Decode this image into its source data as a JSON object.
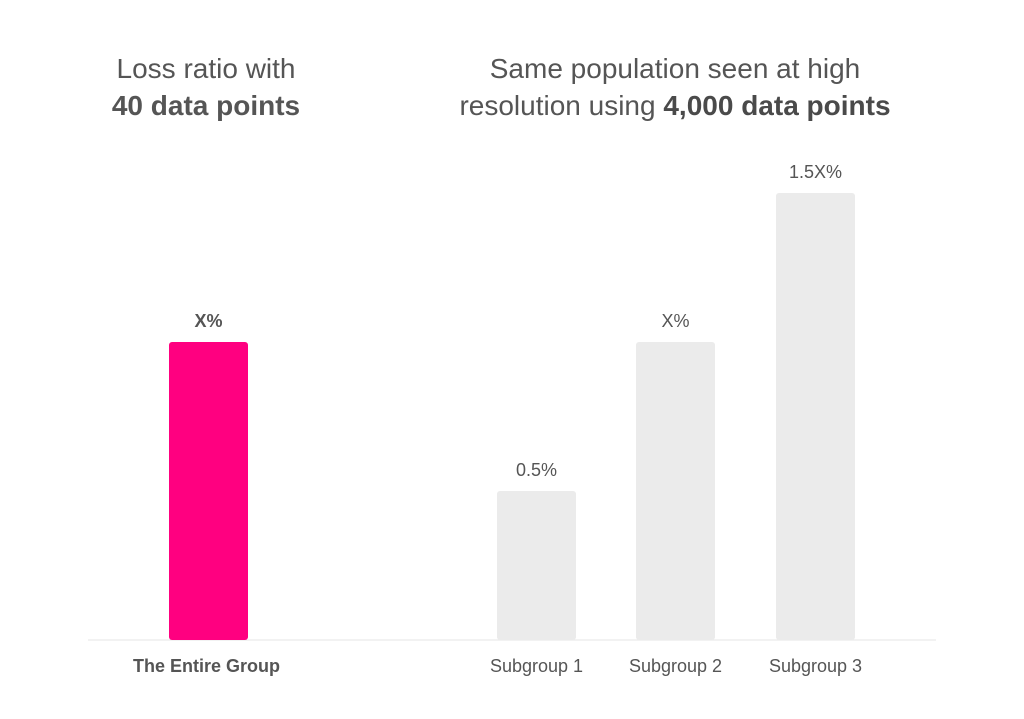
{
  "chart_data": [
    {
      "type": "bar",
      "title_line1": "Loss ratio with",
      "title_line2_bold": "40 data points",
      "categories": [
        "The Entire Group"
      ],
      "values": [
        1
      ],
      "data_labels": [
        "X%"
      ],
      "colors": [
        "#ff0080"
      ],
      "grid": false,
      "legend": "none"
    },
    {
      "type": "bar",
      "title_line1": "Same population seen at high",
      "title_line2_prefix": "resolution using ",
      "title_line2_bold": "4,000 data points",
      "categories": [
        "Subgroup 1",
        "Subgroup 2",
        "Subgroup 3"
      ],
      "values": [
        0.5,
        1,
        1.5
      ],
      "data_labels": [
        "0.5%",
        "X%",
        "1.5X%"
      ],
      "colors": [
        "#ebebeb",
        "#ebebeb",
        "#ebebeb"
      ],
      "grid": false,
      "legend": "none"
    }
  ],
  "colors": {
    "accent": "#ff0080",
    "neutral_bar": "#ebebeb",
    "baseline": "#eeeeee",
    "text": "#555555"
  }
}
